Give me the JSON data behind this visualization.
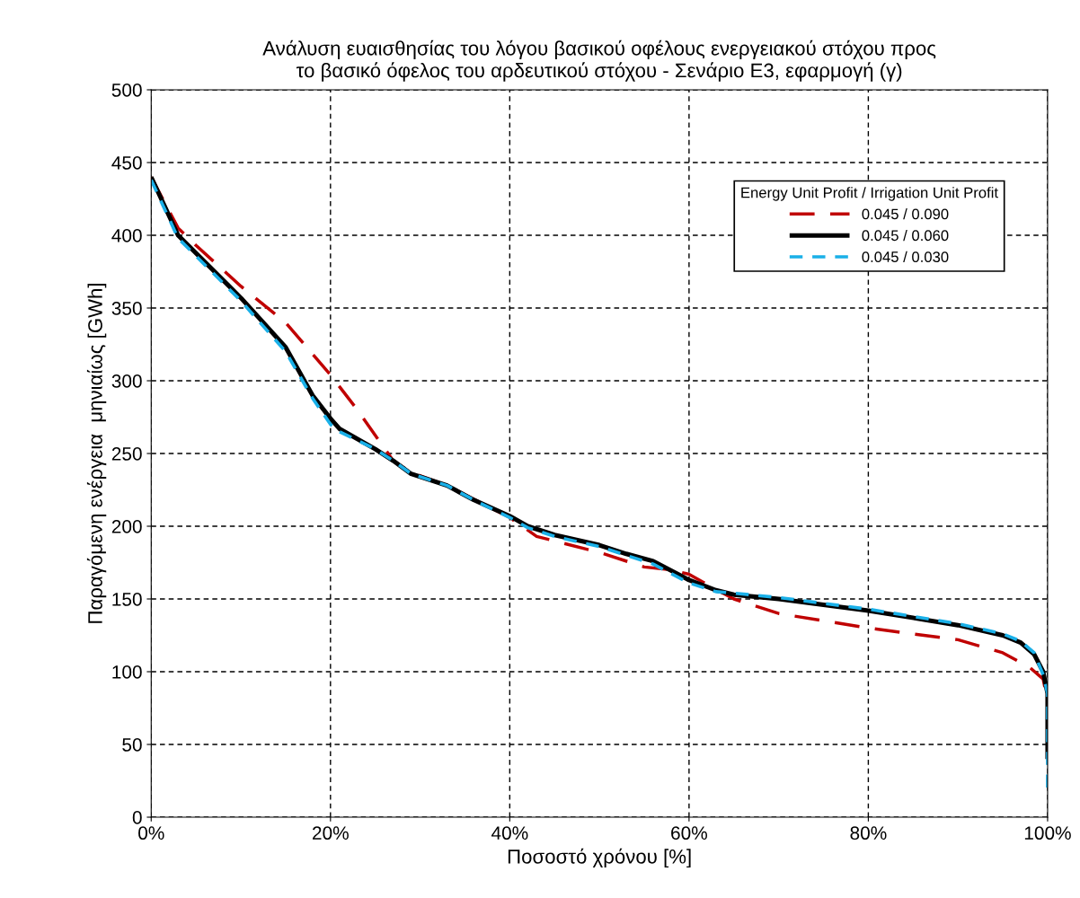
{
  "chart_data": {
    "type": "line",
    "title": "Ανάλυση ευαισθησίας του λόγου βασικού οφέλους ενεργειακού στόχου προς\nτο βασικό όφελος του αρδευτικού στόχου - Σενάριο Ε3, εφαρμογή (γ)",
    "xlabel": "Ποσοστό χρόνου [%]",
    "ylabel": "Παραγόμενη ενέργεια  μηνιαίως [GWh]",
    "legend_title": "Energy Unit Profit / Irrigation Unit Profit",
    "legend": "top right",
    "grid": true,
    "xlim": [
      0,
      100
    ],
    "ylim": [
      0,
      500
    ],
    "xticks": [
      {
        "value": 0,
        "label": "0%"
      },
      {
        "value": 20,
        "label": "20%"
      },
      {
        "value": 40,
        "label": "40%"
      },
      {
        "value": 60,
        "label": "60%"
      },
      {
        "value": 80,
        "label": "80%"
      },
      {
        "value": 100,
        "label": "100%"
      }
    ],
    "yticks": [
      0,
      50,
      100,
      150,
      200,
      250,
      300,
      350,
      400,
      450,
      500
    ],
    "series": [
      {
        "name": "0.045 / 0.090",
        "color": "#c00000",
        "line_style": "dashed",
        "x": [
          0,
          3,
          5,
          10,
          15,
          20,
          23,
          27,
          29,
          33,
          40,
          43,
          50,
          55,
          58,
          60,
          62,
          65,
          70,
          80,
          90,
          95,
          98,
          99.5,
          100
        ],
        "values": [
          440,
          405,
          393,
          365,
          340,
          304,
          280,
          245,
          237,
          228,
          206,
          193,
          182,
          172,
          170,
          167,
          160,
          150,
          140,
          130,
          122,
          113,
          103,
          95,
          80
        ]
      },
      {
        "name": "0.045 / 0.060",
        "color": "#000000",
        "line_style": "solid",
        "x": [
          0,
          3,
          10,
          15,
          18,
          20,
          21,
          25,
          27,
          29,
          33,
          36,
          40,
          42,
          45,
          50,
          53,
          56,
          60,
          63,
          65,
          70,
          80,
          90,
          95,
          97,
          98.5,
          99.5,
          100,
          100
        ],
        "values": [
          440,
          400,
          357,
          323,
          290,
          274,
          267,
          253,
          245,
          236,
          228,
          218,
          207,
          200,
          194,
          187,
          181,
          176,
          163,
          156,
          153,
          150,
          142,
          132,
          125,
          120,
          112,
          100,
          85,
          40
        ]
      },
      {
        "name": "0.045 / 0.030",
        "color": "#1ab0e8",
        "line_style": "dotted",
        "x": [
          0,
          3,
          10,
          15,
          18,
          20,
          21,
          25,
          27,
          29,
          33,
          36,
          40,
          42,
          45,
          50,
          53,
          56,
          60,
          63,
          65,
          70,
          80,
          90,
          95,
          97,
          98.5,
          99.5,
          100,
          100
        ],
        "values": [
          438,
          398,
          355,
          320,
          288,
          270,
          265,
          253,
          245,
          236,
          228,
          218,
          206,
          199,
          193,
          186,
          180,
          174,
          161,
          155,
          154,
          151,
          143,
          133,
          126,
          121,
          113,
          98,
          85,
          20
        ]
      }
    ]
  }
}
